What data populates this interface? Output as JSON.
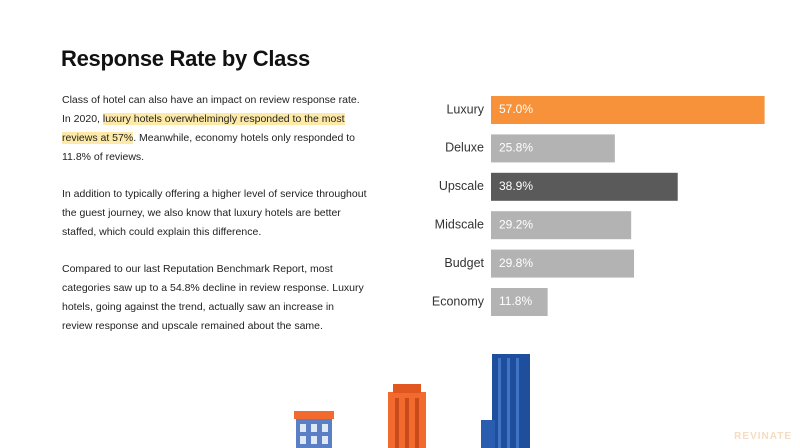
{
  "title": "Response Rate by Class",
  "paragraphs": [
    [
      "Class of hotel can also have an impact on review response rate. In 2020, ",
      "luxury hotels overwhelmingly responded to the most reviews at 57%",
      ". Meanwhile, economy hotels only responded to 11.8% of reviews."
    ],
    [
      "In addition to typically offering a higher level of service throughout the guest journey, we also know that luxury hotels are better staffed, which could explain this difference."
    ],
    [
      "Compared to our last Reputation Benchmark Report, most categories saw up to a 54.8% decline in review response. Luxury hotels, going against the trend, actually saw an increase in review response and upscale remained about the same."
    ]
  ],
  "chart_data": {
    "type": "bar",
    "orientation": "horizontal",
    "categories": [
      "Luxury",
      "Deluxe",
      "Upscale",
      "Midscale",
      "Budget",
      "Economy"
    ],
    "values": [
      57.0,
      25.8,
      38.9,
      29.2,
      29.8,
      11.8
    ],
    "value_labels": [
      "57.0%",
      "25.8%",
      "38.9%",
      "29.2%",
      "29.8%",
      "11.8%"
    ],
    "colors": [
      "#f7923a",
      "#b3b3b3",
      "#5a5a5a",
      "#b3b3b3",
      "#b3b3b3",
      "#b3b3b3"
    ]
  },
  "logo": "REVINATE"
}
